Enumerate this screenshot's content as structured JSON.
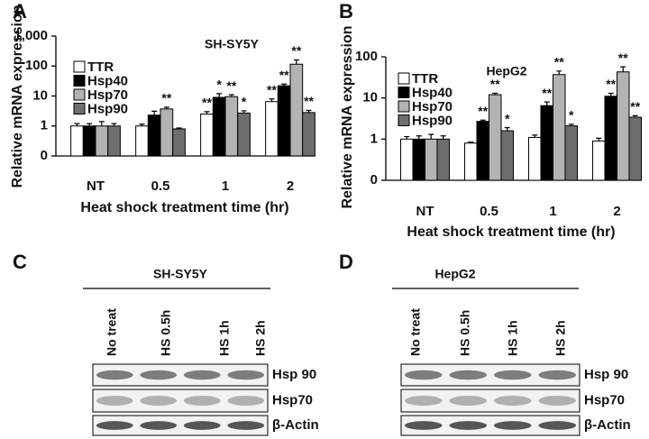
{
  "chart_data": [
    {
      "type": "bar",
      "panel_label": "A",
      "title": "SH-SY5Y",
      "y_label": "Relative mRNA expression",
      "x_label": "Heat shock treatment time (hr)",
      "log_scale": true,
      "legend": "upper-left",
      "categories": [
        "NT",
        "0.5",
        "1",
        "2"
      ],
      "ylim": [
        0.1,
        1000
      ],
      "yticks": [
        {
          "value": 0.1,
          "label": "0"
        },
        1,
        10,
        100,
        {
          "value": 1000,
          "label": "1,000"
        }
      ],
      "series": [
        {
          "name": "TTR",
          "color": "#ffffff",
          "values": [
            1,
            1,
            2.5,
            6.5
          ],
          "errors": [
            0.2,
            0.15,
            0.5,
            1.5
          ],
          "significance": [
            null,
            null,
            "**",
            "**"
          ]
        },
        {
          "name": "Hsp40",
          "color": "#000000",
          "values": [
            1,
            2.3,
            9,
            22
          ],
          "errors": [
            0.2,
            0.8,
            3,
            3
          ],
          "significance": [
            null,
            null,
            "*",
            "**"
          ]
        },
        {
          "name": "Hsp70",
          "color": "#b3b3b3",
          "values": [
            1,
            3.7,
            9.5,
            115
          ],
          "errors": [
            0.4,
            0.5,
            1.5,
            45
          ],
          "significance": [
            null,
            "**",
            "**",
            "**"
          ]
        },
        {
          "name": "Hsp90",
          "color": "#6e6e6e",
          "values": [
            1,
            0.8,
            2.7,
            2.8
          ],
          "errors": [
            0.2,
            0.06,
            0.5,
            0.5
          ],
          "significance": [
            null,
            null,
            "*",
            "**"
          ]
        }
      ]
    },
    {
      "type": "bar",
      "panel_label": "B",
      "title": "HepG2",
      "y_label": "Relative mRNA expression",
      "x_label": "Heat shock treatment time (hr)",
      "log_scale": true,
      "legend": "upper-left",
      "categories": [
        "NT",
        "0.5",
        "1",
        "2"
      ],
      "ylim": [
        0.1,
        100
      ],
      "yticks": [
        {
          "value": 0.1,
          "label": "0"
        },
        1,
        10,
        100
      ],
      "series": [
        {
          "name": "TTR",
          "color": "#ffffff",
          "values": [
            1,
            0.8,
            1.1,
            0.9
          ],
          "errors": [
            0.15,
            0.05,
            0.15,
            0.15
          ],
          "significance": [
            null,
            null,
            null,
            null
          ]
        },
        {
          "name": "Hsp40",
          "color": "#000000",
          "values": [
            1,
            2.7,
            6.5,
            11
          ],
          "errors": [
            0.2,
            0.2,
            1.5,
            2
          ],
          "significance": [
            null,
            "**",
            "**",
            "**"
          ]
        },
        {
          "name": "Hsp70",
          "color": "#b3b3b3",
          "values": [
            1,
            12,
            37,
            43
          ],
          "errors": [
            0.3,
            1,
            8,
            14
          ],
          "significance": [
            null,
            "**",
            "**",
            "**"
          ]
        },
        {
          "name": "Hsp90",
          "color": "#6e6e6e",
          "values": [
            1,
            1.6,
            2.1,
            3.4
          ],
          "errors": [
            0.2,
            0.3,
            0.2,
            0.3
          ],
          "significance": [
            null,
            "*",
            "*",
            "**"
          ]
        }
      ]
    }
  ],
  "blots": [
    {
      "panel_label": "C",
      "title": "SH-SY5Y",
      "lanes": [
        "No treat",
        "HS 0.5h",
        "HS 1h",
        "HS 2h"
      ],
      "rows": [
        "Hsp 90",
        "Hsp70",
        "β-Actin"
      ]
    },
    {
      "panel_label": "D",
      "title": "HepG2",
      "lanes": [
        "No treat",
        "HS 0.5h",
        "HS 1h",
        "HS 2h"
      ],
      "rows": [
        "Hsp 90",
        "Hsp70",
        "β-Actin"
      ]
    }
  ]
}
